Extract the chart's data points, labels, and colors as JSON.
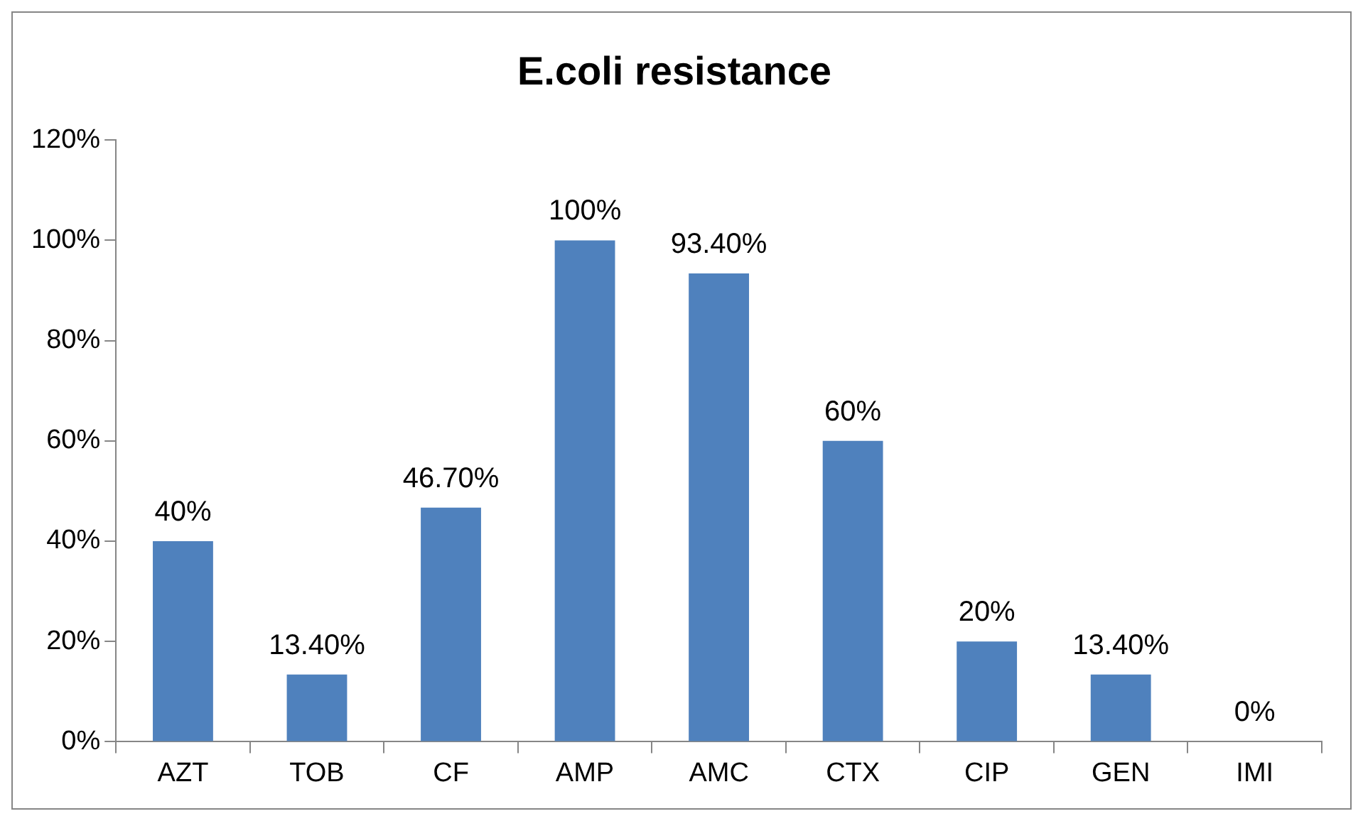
{
  "chart_data": {
    "type": "bar",
    "title": "E.coli resistance",
    "categories": [
      "AZT",
      "TOB",
      "CF",
      "AMP",
      "AMC",
      "CTX",
      "CIP",
      "GEN",
      "IMI"
    ],
    "values": [
      40,
      13.4,
      46.7,
      100,
      93.4,
      60,
      20,
      13.4,
      0
    ],
    "value_labels": [
      "40%",
      "13.40%",
      "46.70%",
      "100%",
      "93.40%",
      "60%",
      "20%",
      "13.40%",
      "0%"
    ],
    "color": "#4f81bd",
    "ylim": [
      0,
      120
    ],
    "yticks": [
      {
        "value": 0,
        "label": "0%"
      },
      {
        "value": 20,
        "label": "20%"
      },
      {
        "value": 40,
        "label": "40%"
      },
      {
        "value": 60,
        "label": "60%"
      },
      {
        "value": 80,
        "label": "80%"
      },
      {
        "value": 100,
        "label": "100%"
      },
      {
        "value": 120,
        "label": "120%"
      }
    ],
    "grid": false,
    "legend": false
  }
}
